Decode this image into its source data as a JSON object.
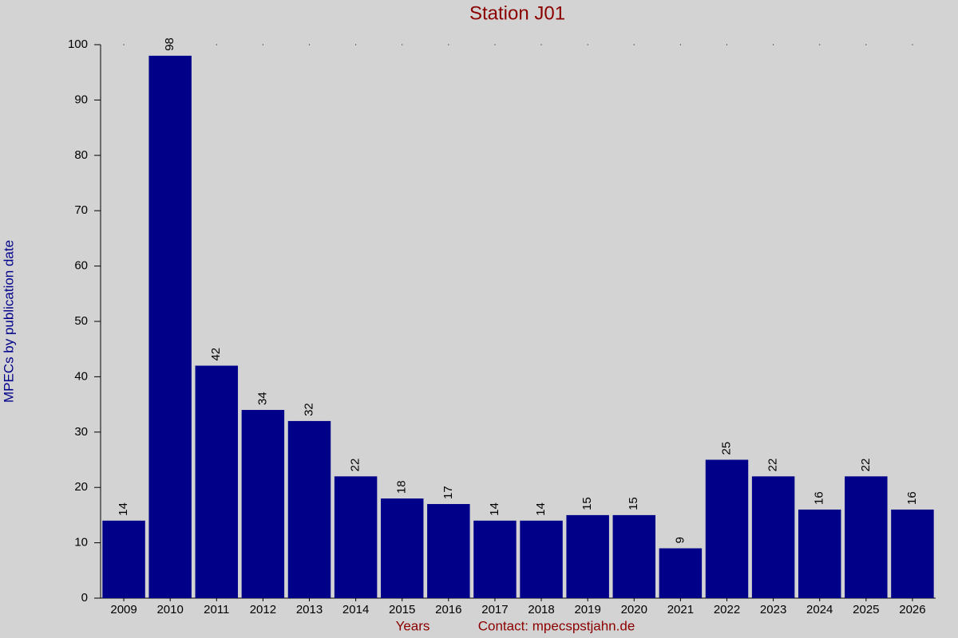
{
  "chart_data": {
    "type": "bar",
    "title": "Station J01",
    "x_label": "Years",
    "contact": "Contact: mpecspstjahn.de",
    "y_label": "MPECs by publication date",
    "categories": [
      "2009",
      "2010",
      "2011",
      "2012",
      "2013",
      "2014",
      "2015",
      "2016",
      "2017",
      "2018",
      "2019",
      "2020",
      "2021",
      "2022",
      "2023",
      "2024",
      "2025",
      "2026"
    ],
    "values": [
      14,
      98,
      42,
      34,
      32,
      22,
      18,
      17,
      14,
      14,
      15,
      15,
      9,
      25,
      22,
      16,
      22,
      16
    ],
    "color": "#000088",
    "ylim": [
      0,
      100
    ],
    "yticks": [
      0,
      10,
      20,
      30,
      40,
      50,
      60,
      70,
      80,
      90,
      100
    ]
  }
}
